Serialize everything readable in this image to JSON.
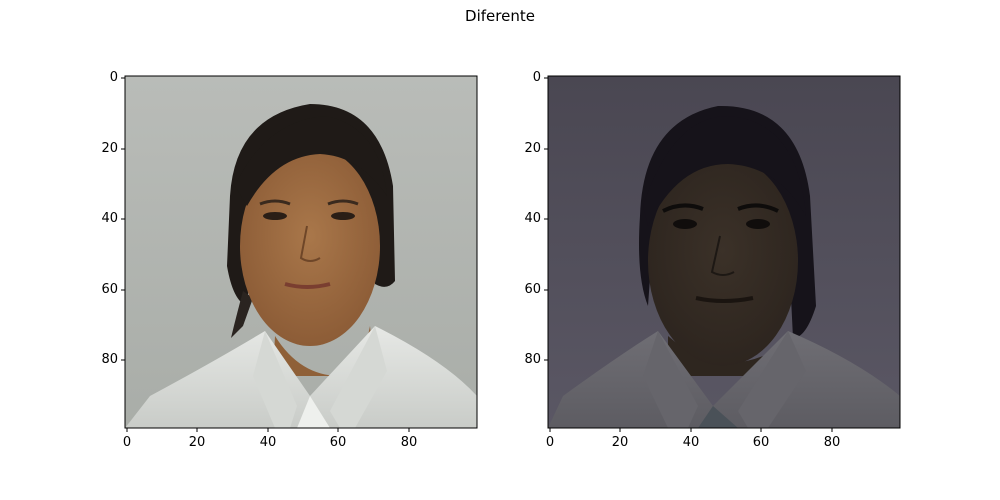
{
  "figure": {
    "title": "Diferente"
  },
  "panels": [
    {
      "name": "left-face",
      "x_ticks": [
        "0",
        "20",
        "40",
        "60",
        "80"
      ],
      "y_ticks": [
        "0",
        "20",
        "40",
        "60",
        "80"
      ]
    },
    {
      "name": "right-face",
      "x_ticks": [
        "0",
        "20",
        "40",
        "60",
        "80"
      ],
      "y_ticks": [
        "0",
        "20",
        "40",
        "60",
        "80"
      ]
    }
  ]
}
